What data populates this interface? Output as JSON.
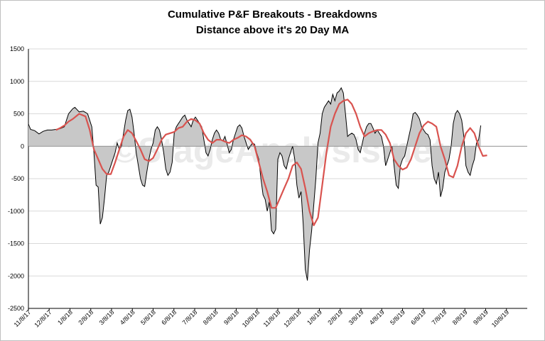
{
  "chart_data": {
    "type": "area",
    "title": "Cumulative P&F Breakouts - Breakdowns",
    "subtitle": "Distance above it's 20 Day MA",
    "watermark": "©StageAnalysis.net",
    "ylim": [
      -2500,
      1500
    ],
    "yticks": [
      1500,
      1000,
      500,
      0,
      -500,
      -1000,
      -1500,
      -2000,
      -2500
    ],
    "xlabels": [
      "11/8/17",
      "12/8/17",
      "1/8/18",
      "2/8/18",
      "3/8/18",
      "4/8/18",
      "5/8/18",
      "6/8/18",
      "7/8/18",
      "8/8/18",
      "9/8/18",
      "10/8/18",
      "11/8/18",
      "12/8/18",
      "1/8/19",
      "2/8/19",
      "3/8/19",
      "4/8/19",
      "5/8/19",
      "6/8/19",
      "7/8/19",
      "8/8/19",
      "9/8/19",
      "10/8/19"
    ],
    "grid": true,
    "colors": {
      "area_fill": "#c8c8c8",
      "line": "#000000",
      "ma_line": "#d9534f",
      "grid": "#d9d9d9"
    },
    "series": [
      {
        "values": [
          [
            0,
            340
          ],
          [
            1,
            260
          ],
          [
            3,
            240
          ],
          [
            5,
            190
          ],
          [
            7,
            230
          ],
          [
            9,
            250
          ],
          [
            11,
            250
          ],
          [
            13,
            260
          ],
          [
            15,
            270
          ],
          [
            17,
            300
          ],
          [
            18,
            400
          ],
          [
            19,
            500
          ],
          [
            21,
            580
          ],
          [
            22,
            600
          ],
          [
            24,
            530
          ],
          [
            26,
            540
          ],
          [
            28,
            500
          ],
          [
            30,
            300
          ],
          [
            31,
            -100
          ],
          [
            32,
            -600
          ],
          [
            33,
            -630
          ],
          [
            34,
            -1200
          ],
          [
            35,
            -1100
          ],
          [
            36,
            -800
          ],
          [
            37,
            -450
          ],
          [
            38,
            -400
          ],
          [
            39,
            -300
          ],
          [
            41,
            -100
          ],
          [
            42,
            50
          ],
          [
            43,
            -50
          ],
          [
            44,
            0
          ],
          [
            45,
            200
          ],
          [
            46,
            400
          ],
          [
            47,
            550
          ],
          [
            48,
            570
          ],
          [
            49,
            450
          ],
          [
            50,
            200
          ],
          [
            51,
            -100
          ],
          [
            52,
            -300
          ],
          [
            53,
            -500
          ],
          [
            54,
            -600
          ],
          [
            55,
            -620
          ],
          [
            56,
            -400
          ],
          [
            57,
            -200
          ],
          [
            58,
            -50
          ],
          [
            59,
            50
          ],
          [
            60,
            250
          ],
          [
            61,
            300
          ],
          [
            62,
            250
          ],
          [
            63,
            100
          ],
          [
            64,
            -100
          ],
          [
            65,
            -350
          ],
          [
            66,
            -450
          ],
          [
            67,
            -400
          ],
          [
            68,
            -250
          ],
          [
            69,
            200
          ],
          [
            70,
            300
          ],
          [
            71,
            350
          ],
          [
            72,
            400
          ],
          [
            73,
            450
          ],
          [
            74,
            480
          ],
          [
            75,
            400
          ],
          [
            76,
            350
          ],
          [
            77,
            300
          ],
          [
            78,
            400
          ],
          [
            79,
            450
          ],
          [
            80,
            400
          ],
          [
            81,
            350
          ],
          [
            82,
            300
          ],
          [
            83,
            100
          ],
          [
            84,
            -100
          ],
          [
            85,
            -150
          ],
          [
            86,
            -50
          ],
          [
            87,
            100
          ],
          [
            88,
            200
          ],
          [
            89,
            250
          ],
          [
            90,
            200
          ],
          [
            91,
            100
          ],
          [
            92,
            80
          ],
          [
            93,
            150
          ],
          [
            94,
            30
          ],
          [
            95,
            -100
          ],
          [
            96,
            -50
          ],
          [
            97,
            100
          ],
          [
            98,
            200
          ],
          [
            99,
            300
          ],
          [
            100,
            330
          ],
          [
            101,
            280
          ],
          [
            102,
            150
          ],
          [
            103,
            50
          ],
          [
            104,
            -50
          ],
          [
            105,
            0
          ],
          [
            106,
            50
          ],
          [
            107,
            30
          ],
          [
            108,
            -100
          ],
          [
            109,
            -200
          ],
          [
            110,
            -500
          ],
          [
            111,
            -750
          ],
          [
            112,
            -820
          ],
          [
            113,
            -1000
          ],
          [
            114,
            -850
          ],
          [
            115,
            -1300
          ],
          [
            116,
            -1350
          ],
          [
            117,
            -1280
          ],
          [
            118,
            -200
          ],
          [
            119,
            -100
          ],
          [
            120,
            -150
          ],
          [
            121,
            -300
          ],
          [
            122,
            -350
          ],
          [
            123,
            -200
          ],
          [
            124,
            -100
          ],
          [
            125,
            0
          ],
          [
            126,
            -200
          ],
          [
            127,
            -600
          ],
          [
            128,
            -800
          ],
          [
            129,
            -700
          ],
          [
            130,
            -1200
          ],
          [
            131,
            -1900
          ],
          [
            132,
            -2070
          ],
          [
            133,
            -1600
          ],
          [
            134,
            -1300
          ],
          [
            135,
            -900
          ],
          [
            136,
            -500
          ],
          [
            137,
            50
          ],
          [
            138,
            200
          ],
          [
            139,
            500
          ],
          [
            140,
            600
          ],
          [
            141,
            650
          ],
          [
            142,
            700
          ],
          [
            143,
            650
          ],
          [
            144,
            800
          ],
          [
            145,
            700
          ],
          [
            146,
            820
          ],
          [
            147,
            850
          ],
          [
            148,
            900
          ],
          [
            149,
            820
          ],
          [
            150,
            500
          ],
          [
            151,
            150
          ],
          [
            152,
            180
          ],
          [
            153,
            200
          ],
          [
            154,
            180
          ],
          [
            155,
            100
          ],
          [
            156,
            -50
          ],
          [
            157,
            -100
          ],
          [
            158,
            50
          ],
          [
            159,
            200
          ],
          [
            160,
            300
          ],
          [
            161,
            350
          ],
          [
            162,
            350
          ],
          [
            163,
            280
          ],
          [
            164,
            200
          ],
          [
            165,
            250
          ],
          [
            166,
            200
          ],
          [
            167,
            150
          ],
          [
            168,
            0
          ],
          [
            169,
            -300
          ],
          [
            170,
            -200
          ],
          [
            171,
            -100
          ],
          [
            172,
            0
          ],
          [
            173,
            -300
          ],
          [
            174,
            -600
          ],
          [
            175,
            -650
          ],
          [
            176,
            -300
          ],
          [
            177,
            -200
          ],
          [
            178,
            -150
          ],
          [
            179,
            0
          ],
          [
            180,
            150
          ],
          [
            181,
            300
          ],
          [
            182,
            500
          ],
          [
            183,
            520
          ],
          [
            184,
            480
          ],
          [
            185,
            420
          ],
          [
            186,
            300
          ],
          [
            187,
            250
          ],
          [
            188,
            200
          ],
          [
            189,
            180
          ],
          [
            190,
            100
          ],
          [
            191,
            -300
          ],
          [
            192,
            -500
          ],
          [
            193,
            -580
          ],
          [
            194,
            -400
          ],
          [
            195,
            -780
          ],
          [
            196,
            -650
          ],
          [
            197,
            -400
          ],
          [
            198,
            -300
          ],
          [
            199,
            -200
          ],
          [
            200,
            0
          ],
          [
            201,
            350
          ],
          [
            202,
            500
          ],
          [
            203,
            550
          ],
          [
            204,
            500
          ],
          [
            205,
            400
          ],
          [
            206,
            150
          ],
          [
            207,
            -300
          ],
          [
            208,
            -400
          ],
          [
            209,
            -450
          ],
          [
            210,
            -300
          ],
          [
            211,
            -200
          ],
          [
            212,
            50
          ],
          [
            213,
            100
          ],
          [
            214,
            320
          ]
        ]
      },
      {
        "values": [
          [
            13,
            250
          ],
          [
            15,
            280
          ],
          [
            17,
            320
          ],
          [
            19,
            380
          ],
          [
            21,
            420
          ],
          [
            24,
            500
          ],
          [
            27,
            460
          ],
          [
            29,
            250
          ],
          [
            31,
            -50
          ],
          [
            33,
            -200
          ],
          [
            35,
            -350
          ],
          [
            37,
            -430
          ],
          [
            39,
            -430
          ],
          [
            41,
            -250
          ],
          [
            43,
            -50
          ],
          [
            45,
            150
          ],
          [
            47,
            250
          ],
          [
            49,
            200
          ],
          [
            51,
            80
          ],
          [
            53,
            -50
          ],
          [
            55,
            -200
          ],
          [
            57,
            -230
          ],
          [
            59,
            -180
          ],
          [
            61,
            -50
          ],
          [
            63,
            100
          ],
          [
            65,
            180
          ],
          [
            67,
            200
          ],
          [
            69,
            220
          ],
          [
            71,
            280
          ],
          [
            73,
            300
          ],
          [
            75,
            380
          ],
          [
            77,
            420
          ],
          [
            79,
            400
          ],
          [
            81,
            350
          ],
          [
            83,
            200
          ],
          [
            85,
            100
          ],
          [
            87,
            50
          ],
          [
            89,
            100
          ],
          [
            91,
            100
          ],
          [
            93,
            70
          ],
          [
            95,
            50
          ],
          [
            97,
            100
          ],
          [
            99,
            130
          ],
          [
            101,
            170
          ],
          [
            103,
            150
          ],
          [
            105,
            100
          ],
          [
            107,
            0
          ],
          [
            109,
            -250
          ],
          [
            111,
            -500
          ],
          [
            113,
            -700
          ],
          [
            115,
            -950
          ],
          [
            117,
            -950
          ],
          [
            119,
            -800
          ],
          [
            121,
            -650
          ],
          [
            123,
            -500
          ],
          [
            125,
            -300
          ],
          [
            127,
            -250
          ],
          [
            129,
            -350
          ],
          [
            131,
            -650
          ],
          [
            133,
            -1000
          ],
          [
            135,
            -1220
          ],
          [
            137,
            -1100
          ],
          [
            139,
            -600
          ],
          [
            141,
            -100
          ],
          [
            143,
            300
          ],
          [
            145,
            500
          ],
          [
            147,
            650
          ],
          [
            149,
            700
          ],
          [
            151,
            720
          ],
          [
            153,
            650
          ],
          [
            155,
            500
          ],
          [
            157,
            300
          ],
          [
            159,
            150
          ],
          [
            161,
            200
          ],
          [
            163,
            230
          ],
          [
            165,
            250
          ],
          [
            167,
            250
          ],
          [
            169,
            180
          ],
          [
            171,
            50
          ],
          [
            173,
            -200
          ],
          [
            175,
            -300
          ],
          [
            177,
            -360
          ],
          [
            179,
            -330
          ],
          [
            181,
            -200
          ],
          [
            183,
            0
          ],
          [
            185,
            200
          ],
          [
            187,
            320
          ],
          [
            189,
            380
          ],
          [
            191,
            350
          ],
          [
            193,
            300
          ],
          [
            195,
            0
          ],
          [
            197,
            -200
          ],
          [
            199,
            -450
          ],
          [
            201,
            -480
          ],
          [
            203,
            -300
          ],
          [
            205,
            0
          ],
          [
            207,
            200
          ],
          [
            209,
            280
          ],
          [
            211,
            200
          ],
          [
            213,
            0
          ],
          [
            215,
            -150
          ],
          [
            217,
            -140
          ]
        ]
      }
    ]
  }
}
